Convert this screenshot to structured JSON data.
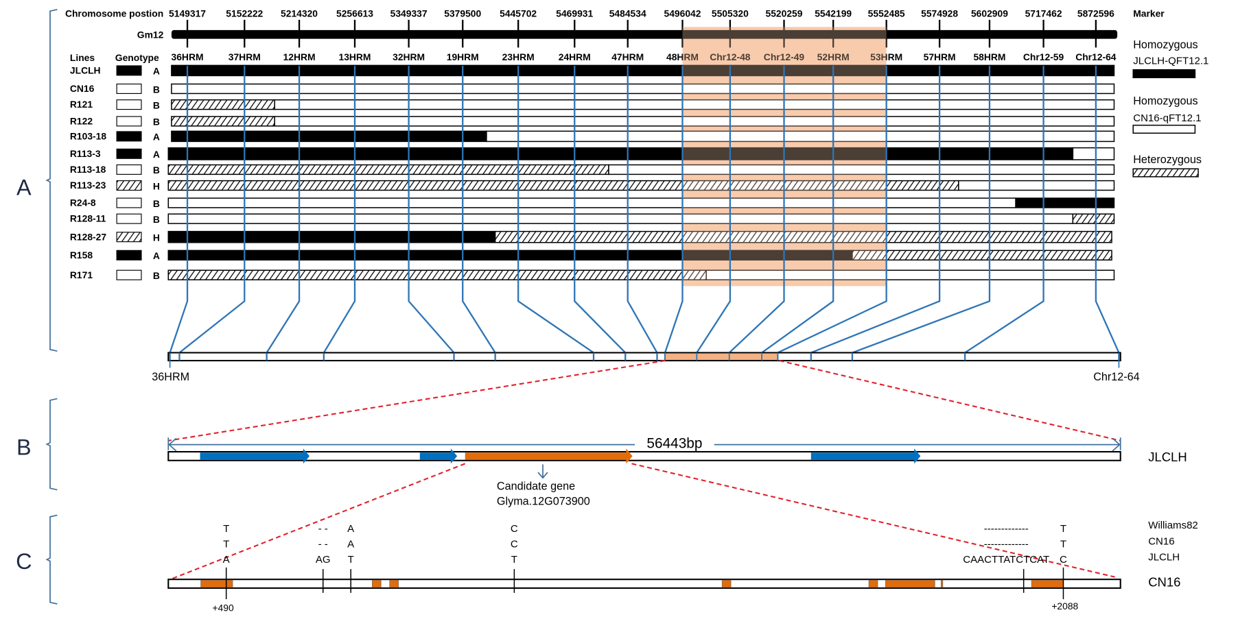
{
  "panelA": {
    "label": "A",
    "position_header": "Chromosome postion",
    "chromosome": "Gm12",
    "marker_header": "Marker",
    "lines_header": "Lines",
    "genotype_header": "Genotype",
    "markers": [
      {
        "name": "36HRM",
        "position": "5149317"
      },
      {
        "name": "37HRM",
        "position": "5152222"
      },
      {
        "name": "12HRM",
        "position": "5214320"
      },
      {
        "name": "13HRM",
        "position": "5256613"
      },
      {
        "name": "32HRM",
        "position": "5349337"
      },
      {
        "name": "19HRM",
        "position": "5379500"
      },
      {
        "name": "23HRM",
        "position": "5445702"
      },
      {
        "name": "24HRM",
        "position": "5469931"
      },
      {
        "name": "47HRM",
        "position": "5484534"
      },
      {
        "name": "48HRM",
        "position": "5496042"
      },
      {
        "name": "Chr12-48",
        "position": "5505320"
      },
      {
        "name": "Chr12-49",
        "position": "5520259"
      },
      {
        "name": "52HRM",
        "position": "5542199"
      },
      {
        "name": "53HRM",
        "position": "5552485"
      },
      {
        "name": "57HRM",
        "position": "5574928"
      },
      {
        "name": "58HRM",
        "position": "5602909"
      },
      {
        "name": "Chr12-59",
        "position": "5717462"
      },
      {
        "name": "Chr12-64",
        "position": "5872596"
      }
    ],
    "lines": [
      {
        "name": "JLCLH",
        "genotype": "A",
        "segments": [
          "A"
        ]
      },
      {
        "name": "CN16",
        "genotype": "B",
        "segments": [
          "B"
        ]
      },
      {
        "name": "R121",
        "genotype": "B",
        "segments": [
          "H",
          "B"
        ]
      },
      {
        "name": "R122",
        "genotype": "B",
        "segments": [
          "H",
          "B"
        ]
      },
      {
        "name": "R103-18",
        "genotype": "A",
        "segments": [
          "A",
          "B"
        ]
      },
      {
        "name": "R113-3",
        "genotype": "A",
        "segments": [
          "A",
          "B"
        ]
      },
      {
        "name": "R113-18",
        "genotype": "B",
        "segments": [
          "H",
          "B"
        ]
      },
      {
        "name": "R113-23",
        "genotype": "H",
        "segments": [
          "H",
          "B"
        ]
      },
      {
        "name": "R24-8",
        "genotype": "B",
        "segments": [
          "B",
          "A"
        ]
      },
      {
        "name": "R128-11",
        "genotype": "B",
        "segments": [
          "B",
          "H"
        ]
      },
      {
        "name": "R128-27",
        "genotype": "H",
        "segments": [
          "A",
          "H"
        ]
      },
      {
        "name": "R158",
        "genotype": "A",
        "segments": [
          "A",
          "H"
        ]
      },
      {
        "name": "R171",
        "genotype": "B",
        "segments": [
          "H",
          "B"
        ]
      }
    ],
    "legend": [
      {
        "title": "Homozygous",
        "subtitle": "JLCLH-QFT12.1",
        "type": "A"
      },
      {
        "title": "Homozygous",
        "subtitle": "CN16-qFT12.1",
        "type": "B"
      },
      {
        "title": "Heterozygous",
        "subtitle": "",
        "type": "H"
      }
    ],
    "zoom_left_label": "36HRM",
    "zoom_right_label": "Chr12-64",
    "candidate_interval": [
      "48HRM",
      "53HRM"
    ]
  },
  "panelB": {
    "label": "B",
    "length_label": "56443bp",
    "line_label": "JLCLH",
    "candidate_line1": "Candidate gene",
    "candidate_line2": "Glyma.12G073900"
  },
  "panelC": {
    "label": "C",
    "line_label": "CN16",
    "row_labels": [
      "Williams82",
      "CN16",
      "JLCLH"
    ],
    "variants": [
      {
        "alleles": [
          "T",
          "T",
          "A"
        ]
      },
      {
        "alleles": [
          "- -",
          "- -",
          "AG"
        ]
      },
      {
        "alleles": [
          "A",
          "A",
          "T"
        ]
      },
      {
        "alleles": [
          "C",
          "C",
          "T"
        ]
      },
      {
        "alleles": [
          "-------------",
          "-------------",
          "CAACTTATCTCAT"
        ]
      },
      {
        "alleles": [
          "T",
          "T",
          "C"
        ]
      }
    ],
    "start_label": "+490",
    "end_label": "+2088"
  },
  "colors": {
    "highlight": "#f8cbad",
    "bracket": "#41719c",
    "marker_line": "#2e75b6",
    "gene_blue": "#0070c0",
    "gene_orange": "#e36c0a",
    "dashed_red": "#e0202a",
    "dark_overlay": "#4a2a14"
  }
}
